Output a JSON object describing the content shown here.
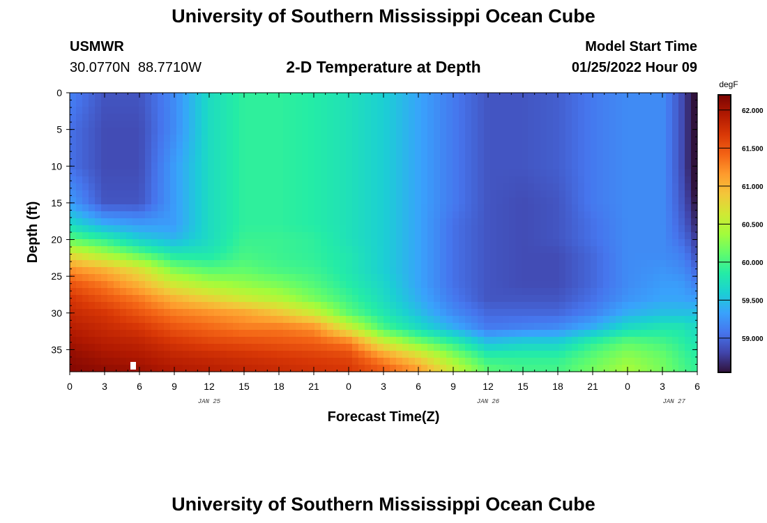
{
  "header": {
    "title": "University of Southern Mississippi Ocean Cube",
    "station_id": "USMWR",
    "station_coords": "30.0770N  88.7710W",
    "chart_title": "2-D Temperature at Depth",
    "model_start_label": "Model Start Time",
    "model_start_value": "01/25/2022 Hour 09"
  },
  "footer": {
    "title": "University of Southern Mississippi Ocean Cube"
  },
  "colors": {
    "colormap": [
      "#30123b",
      "#4145ab",
      "#4675ed",
      "#39a2fc",
      "#1bcfd4",
      "#24eca6",
      "#61fc6c",
      "#a4fc3b",
      "#d1e834",
      "#f3c63a",
      "#fe9b2d",
      "#f36315",
      "#d93806",
      "#b11901",
      "#7a0402"
    ]
  },
  "chart_data": {
    "type": "heatmap",
    "xlabel": "Forecast Time(Z)",
    "ylabel": "Depth (ft)",
    "colorbar_unit": "degF",
    "x_range_hours_from_jan25_00z": [
      0,
      54
    ],
    "y_range": [
      0,
      38
    ],
    "xticks": [
      {
        "hour": 0,
        "label": "0"
      },
      {
        "hour": 3,
        "label": "3"
      },
      {
        "hour": 6,
        "label": "6"
      },
      {
        "hour": 9,
        "label": "9"
      },
      {
        "hour": 12,
        "label": "12"
      },
      {
        "hour": 15,
        "label": "15"
      },
      {
        "hour": 18,
        "label": "18"
      },
      {
        "hour": 21,
        "label": "21"
      },
      {
        "hour": 24,
        "label": "0"
      },
      {
        "hour": 27,
        "label": "3"
      },
      {
        "hour": 30,
        "label": "6"
      },
      {
        "hour": 33,
        "label": "9"
      },
      {
        "hour": 36,
        "label": "12"
      },
      {
        "hour": 39,
        "label": "15"
      },
      {
        "hour": 42,
        "label": "18"
      },
      {
        "hour": 45,
        "label": "21"
      },
      {
        "hour": 48,
        "label": "0"
      },
      {
        "hour": 51,
        "label": "3"
      },
      {
        "hour": 54,
        "label": "6"
      }
    ],
    "date_labels": [
      {
        "hour": 12,
        "label": "JAN 25"
      },
      {
        "hour": 36,
        "label": "JAN 26"
      },
      {
        "hour": 52,
        "label": "JAN 27"
      }
    ],
    "yticks": [
      0,
      5,
      10,
      15,
      20,
      25,
      30,
      35
    ],
    "colorbar_range": [
      58.55,
      62.2
    ],
    "colorbar_ticks": [
      "59.000",
      "59.500",
      "60.000",
      "60.500",
      "61.000",
      "61.500",
      "62.000"
    ],
    "colorbar_tick_values": [
      59.0,
      59.5,
      60.0,
      60.5,
      61.0,
      61.5,
      62.0
    ],
    "time_hours": [
      0,
      3,
      6,
      9,
      12,
      15,
      18,
      21,
      24,
      27,
      30,
      33,
      36,
      39,
      42,
      45,
      48,
      51,
      52.5,
      53.5,
      54
    ],
    "depths_ft": [
      0,
      5,
      10,
      15,
      18,
      20,
      22,
      24,
      26,
      28,
      30,
      32,
      34,
      36,
      38
    ],
    "temperature_degF": [
      [
        59.15,
        58.9,
        58.9,
        59.2,
        59.7,
        59.9,
        59.9,
        59.85,
        59.75,
        59.6,
        59.35,
        59.1,
        58.9,
        58.9,
        58.95,
        59.1,
        59.2,
        59.2,
        58.9,
        58.6,
        58.3
      ],
      [
        59.05,
        58.85,
        58.85,
        59.2,
        59.7,
        59.9,
        59.9,
        59.85,
        59.75,
        59.6,
        59.35,
        59.1,
        58.9,
        58.9,
        58.95,
        59.1,
        59.2,
        59.2,
        58.9,
        58.6,
        58.3
      ],
      [
        59.05,
        58.85,
        58.85,
        59.3,
        59.7,
        59.9,
        59.9,
        59.85,
        59.75,
        59.6,
        59.35,
        59.1,
        58.9,
        58.9,
        58.95,
        59.1,
        59.2,
        59.2,
        58.9,
        58.6,
        58.35
      ],
      [
        59.3,
        58.9,
        58.9,
        59.3,
        59.7,
        59.9,
        59.9,
        59.85,
        59.75,
        59.6,
        59.35,
        59.1,
        58.9,
        58.85,
        58.9,
        59.1,
        59.2,
        59.2,
        58.95,
        58.7,
        58.5
      ],
      [
        59.7,
        59.4,
        59.3,
        59.3,
        59.7,
        59.9,
        59.9,
        59.85,
        59.75,
        59.6,
        59.35,
        59.05,
        58.9,
        58.85,
        58.9,
        59.05,
        59.2,
        59.2,
        59.0,
        58.8,
        58.6
      ],
      [
        60.1,
        59.9,
        59.6,
        59.45,
        59.7,
        59.95,
        59.95,
        59.9,
        59.75,
        59.6,
        59.35,
        59.05,
        58.9,
        58.85,
        58.9,
        59.05,
        59.2,
        59.2,
        59.05,
        58.9,
        58.7
      ],
      [
        60.7,
        60.4,
        60.1,
        59.8,
        59.8,
        60.0,
        59.95,
        59.9,
        59.8,
        59.6,
        59.35,
        59.05,
        58.9,
        58.85,
        58.85,
        59.0,
        59.2,
        59.2,
        59.15,
        59.0,
        58.8
      ],
      [
        61.2,
        61.0,
        60.7,
        60.2,
        60.05,
        60.1,
        60.0,
        59.95,
        59.8,
        59.6,
        59.35,
        59.05,
        58.9,
        58.85,
        58.85,
        59.0,
        59.2,
        59.25,
        59.2,
        59.1,
        58.95
      ],
      [
        61.5,
        61.3,
        61.0,
        60.6,
        60.4,
        60.3,
        60.2,
        60.05,
        59.85,
        59.65,
        59.35,
        59.05,
        58.9,
        58.85,
        58.85,
        59.0,
        59.2,
        59.3,
        59.3,
        59.2,
        59.1
      ],
      [
        61.7,
        61.5,
        61.3,
        61.0,
        60.8,
        60.6,
        60.45,
        60.2,
        59.95,
        59.7,
        59.4,
        59.1,
        58.9,
        58.9,
        58.9,
        59.05,
        59.25,
        59.35,
        59.35,
        59.3,
        59.3
      ],
      [
        61.8,
        61.7,
        61.5,
        61.3,
        61.2,
        61.1,
        60.9,
        60.6,
        60.1,
        59.8,
        59.5,
        59.2,
        59.0,
        59.0,
        59.0,
        59.15,
        59.4,
        59.5,
        59.5,
        59.5,
        59.5
      ],
      [
        61.9,
        61.8,
        61.7,
        61.5,
        61.4,
        61.3,
        61.3,
        61.2,
        60.6,
        60.0,
        59.7,
        59.4,
        59.1,
        59.15,
        59.2,
        59.4,
        59.7,
        59.8,
        59.8,
        59.7,
        59.7
      ],
      [
        62.0,
        61.9,
        61.85,
        61.7,
        61.6,
        61.55,
        61.5,
        61.45,
        61.3,
        60.6,
        60.2,
        59.9,
        59.5,
        59.6,
        59.6,
        59.9,
        60.1,
        60.0,
        59.9,
        59.8,
        59.8
      ],
      [
        62.1,
        62.0,
        61.95,
        61.85,
        61.8,
        61.75,
        61.7,
        61.65,
        61.6,
        61.2,
        60.8,
        60.3,
        59.9,
        59.9,
        59.9,
        60.1,
        60.3,
        60.15,
        60.0,
        59.9,
        59.9
      ],
      [
        62.15,
        62.1,
        62.05,
        61.95,
        61.9,
        61.85,
        61.8,
        61.75,
        61.7,
        61.5,
        61.2,
        60.6,
        60.1,
        60.0,
        60.0,
        60.2,
        60.4,
        60.2,
        60.05,
        59.95,
        59.95
      ]
    ]
  }
}
